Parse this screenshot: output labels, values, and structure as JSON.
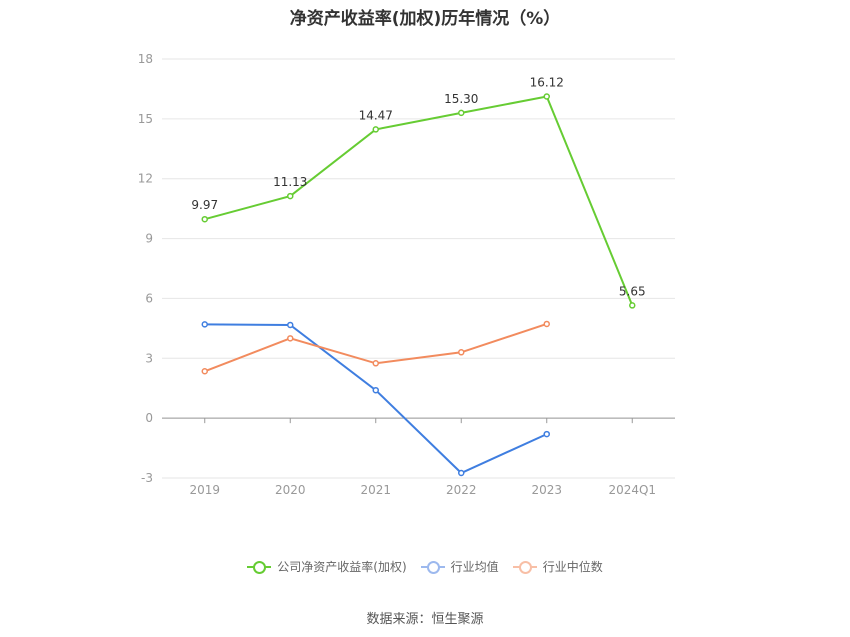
{
  "title": "净资产收益率(加权)历年情况（%）",
  "source": "数据来源：恒生聚源",
  "chart_data": {
    "type": "line",
    "categories": [
      "2019",
      "2020",
      "2021",
      "2022",
      "2023",
      "2024Q1"
    ],
    "ylim": [
      -3,
      18
    ],
    "yticks": [
      -3,
      0,
      3,
      6,
      9,
      12,
      15,
      18
    ],
    "grid": true,
    "legend_position": "bottom",
    "series": [
      {
        "name": "公司净资产收益率(加权)",
        "color": "#66cc33",
        "values": [
          9.97,
          11.13,
          14.47,
          15.3,
          16.12,
          5.65
        ],
        "labels": [
          "9.97",
          "11.13",
          "14.47",
          "15.30",
          "16.12",
          "5.65"
        ]
      },
      {
        "name": "行业均值",
        "color": "#3f7ee0",
        "values": [
          4.7,
          4.67,
          1.4,
          -2.75,
          -0.8,
          null
        ]
      },
      {
        "name": "行业中位数",
        "color": "#f28b5e",
        "values": [
          2.35,
          4.0,
          2.75,
          3.3,
          4.72,
          null
        ]
      }
    ]
  }
}
